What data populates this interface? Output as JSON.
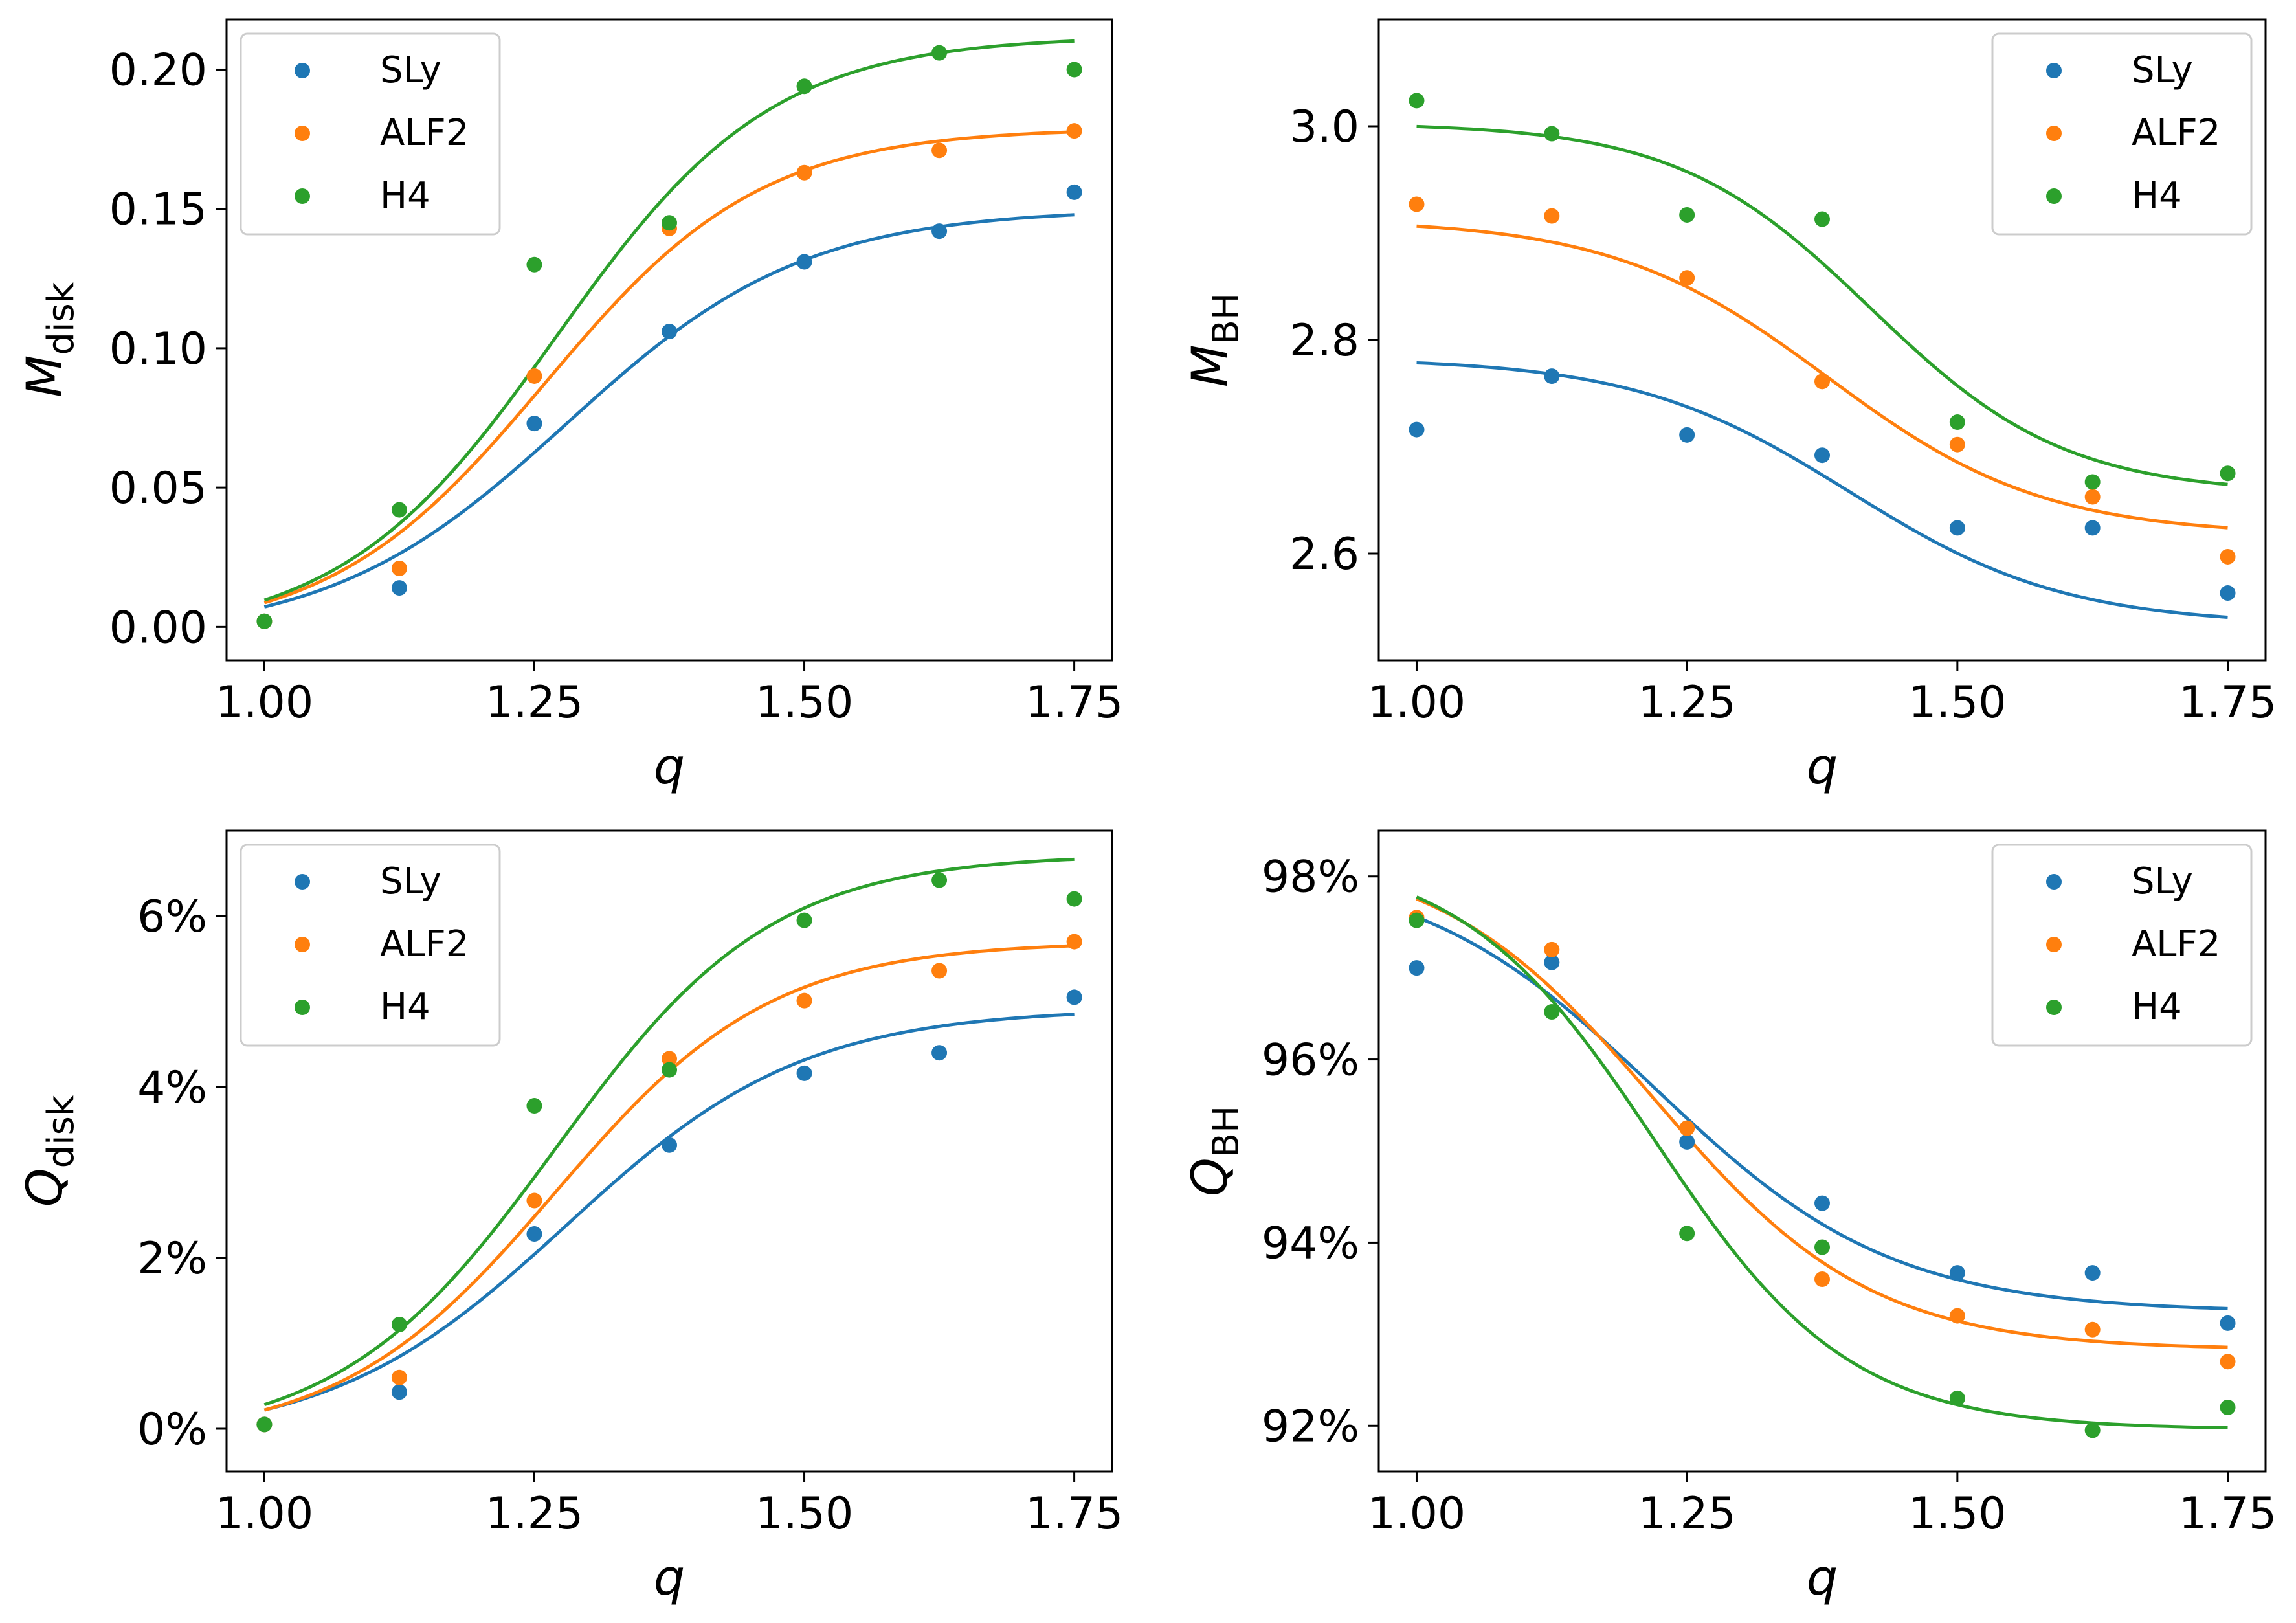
{
  "colors": {
    "SLy": "#1f77b4",
    "ALF2": "#ff7f0e",
    "H4": "#2ca02c"
  },
  "chart_data": [
    {
      "type": "scatter",
      "title": "",
      "xlabel": "q",
      "ylabel": {
        "symbol": "M",
        "subscript": "disk"
      },
      "xlim": [
        0.965,
        1.785
      ],
      "ylim": [
        -0.012,
        0.218
      ],
      "xticks": [
        1.0,
        1.25,
        1.5,
        1.75
      ],
      "xtick_labels": [
        "1.00",
        "1.25",
        "1.50",
        "1.75"
      ],
      "yticks": [
        0.0,
        0.05,
        0.1,
        0.15,
        0.2
      ],
      "ytick_labels": [
        "0.00",
        "0.05",
        "0.10",
        "0.15",
        "0.20"
      ],
      "legend": [
        "SLy",
        "ALF2",
        "H4"
      ],
      "legend_position": "top-left",
      "x": [
        1.0,
        1.125,
        1.25,
        1.375,
        1.5,
        1.625,
        1.75
      ],
      "series": [
        {
          "name": "SLy",
          "values": [
            0.002,
            0.014,
            0.073,
            0.106,
            0.131,
            0.142,
            0.156
          ],
          "fit": {
            "a": -0.004,
            "b": 0.15,
            "c": 1.28,
            "d": 0.11
          }
        },
        {
          "name": "ALF2",
          "values": [
            0.002,
            0.021,
            0.09,
            0.143,
            0.163,
            0.171,
            0.178
          ],
          "fit": {
            "a": -0.004,
            "b": 0.179,
            "c": 1.26,
            "d": 0.1
          }
        },
        {
          "name": "H4",
          "values": [
            0.002,
            0.042,
            0.13,
            0.145,
            0.194,
            0.206,
            0.2
          ],
          "fit": {
            "a": -0.004,
            "b": 0.212,
            "c": 1.27,
            "d": 0.1
          }
        }
      ]
    },
    {
      "type": "scatter",
      "title": "",
      "xlabel": "q",
      "ylabel": {
        "symbol": "M",
        "subscript": "BH"
      },
      "xlim": [
        0.965,
        1.785
      ],
      "ylim": [
        2.5,
        3.1
      ],
      "xticks": [
        1.0,
        1.25,
        1.5,
        1.75
      ],
      "xtick_labels": [
        "1.00",
        "1.25",
        "1.50",
        "1.75"
      ],
      "yticks": [
        2.6,
        2.8,
        3.0
      ],
      "ytick_labels": [
        "2.6",
        "2.8",
        "3.0"
      ],
      "legend": [
        "SLy",
        "ALF2",
        "H4"
      ],
      "legend_position": "top-right",
      "x": [
        1.0,
        1.125,
        1.25,
        1.375,
        1.5,
        1.625,
        1.75
      ],
      "series": [
        {
          "name": "SLy",
          "values": [
            2.716,
            2.766,
            2.711,
            2.692,
            2.624,
            2.624,
            2.563
          ],
          "fit": {
            "a": 2.783,
            "b": 2.533,
            "c": 1.4,
            "d": 0.1
          }
        },
        {
          "name": "ALF2",
          "values": [
            2.927,
            2.916,
            2.858,
            2.761,
            2.702,
            2.653,
            2.597
          ],
          "fit": {
            "a": 2.913,
            "b": 2.617,
            "c": 1.38,
            "d": 0.1
          }
        },
        {
          "name": "H4",
          "values": [
            3.024,
            2.993,
            2.917,
            2.913,
            2.723,
            2.667,
            2.675
          ],
          "fit": {
            "a": 3.003,
            "b": 2.656,
            "c": 1.42,
            "d": 0.09
          }
        }
      ]
    },
    {
      "type": "scatter",
      "title": "",
      "xlabel": "q",
      "ylabel": {
        "symbol": "Q",
        "subscript": "disk"
      },
      "xlim": [
        0.965,
        1.785
      ],
      "ylim": [
        -0.5,
        7.0
      ],
      "xticks": [
        1.0,
        1.25,
        1.5,
        1.75
      ],
      "xtick_labels": [
        "1.00",
        "1.25",
        "1.50",
        "1.75"
      ],
      "yticks": [
        0,
        2,
        4,
        6
      ],
      "ytick_labels": [
        "0%",
        "2%",
        "4%",
        "6%"
      ],
      "legend": [
        "SLy",
        "ALF2",
        "H4"
      ],
      "legend_position": "top-left",
      "x": [
        1.0,
        1.125,
        1.25,
        1.375,
        1.5,
        1.625,
        1.75
      ],
      "series": [
        {
          "name": "SLy",
          "values": [
            0.05,
            0.43,
            2.28,
            3.32,
            4.16,
            4.4,
            5.05
          ],
          "fit": {
            "a": -0.15,
            "b": 4.92,
            "c": 1.28,
            "d": 0.11
          }
        },
        {
          "name": "ALF2",
          "values": [
            0.05,
            0.6,
            2.67,
            4.33,
            5.01,
            5.36,
            5.7
          ],
          "fit": {
            "a": -0.15,
            "b": 5.7,
            "c": 1.27,
            "d": 0.1
          }
        },
        {
          "name": "H4",
          "values": [
            0.05,
            1.22,
            3.78,
            4.2,
            5.95,
            6.42,
            6.2
          ],
          "fit": {
            "a": -0.15,
            "b": 6.72,
            "c": 1.27,
            "d": 0.1
          }
        }
      ]
    },
    {
      "type": "scatter",
      "title": "",
      "xlabel": "q",
      "ylabel": {
        "symbol": "Q",
        "subscript": "BH"
      },
      "xlim": [
        0.965,
        1.785
      ],
      "ylim": [
        91.5,
        98.5
      ],
      "xticks": [
        1.0,
        1.25,
        1.5,
        1.75
      ],
      "xtick_labels": [
        "1.00",
        "1.25",
        "1.50",
        "1.75"
      ],
      "yticks": [
        92,
        94,
        96,
        98
      ],
      "ytick_labels": [
        "92%",
        "94%",
        "96%",
        "98%"
      ],
      "legend": [
        "SLy",
        "ALF2",
        "H4"
      ],
      "legend_position": "top-right",
      "x": [
        1.0,
        1.125,
        1.25,
        1.375,
        1.5,
        1.625,
        1.75
      ],
      "series": [
        {
          "name": "SLy",
          "values": [
            97.0,
            97.06,
            95.1,
            94.43,
            93.67,
            93.67,
            93.12
          ],
          "fit": {
            "a": 98.14,
            "b": 93.24,
            "c": 1.22,
            "d": 0.11
          }
        },
        {
          "name": "ALF2",
          "values": [
            97.55,
            97.2,
            95.25,
            93.6,
            93.2,
            93.05,
            92.7
          ],
          "fit": {
            "a": 98.3,
            "b": 92.83,
            "c": 1.22,
            "d": 0.1
          }
        },
        {
          "name": "H4",
          "values": [
            97.52,
            96.52,
            94.1,
            93.95,
            92.3,
            91.95,
            92.2
          ],
          "fit": {
            "a": 98.28,
            "b": 91.96,
            "c": 1.22,
            "d": 0.09
          }
        }
      ]
    }
  ]
}
